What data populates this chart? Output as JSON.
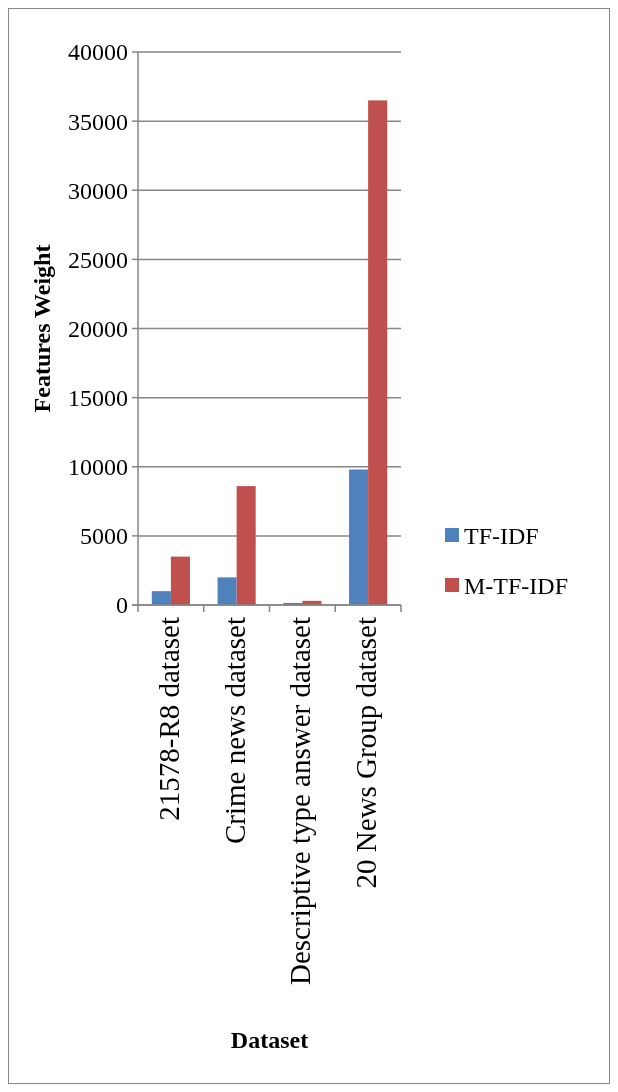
{
  "chart_data": {
    "type": "bar",
    "xlabel": "Dataset",
    "ylabel": "Features Weight",
    "categories": [
      "21578-R8 dataset",
      "Crime news dataset",
      "Descriptive type answer dataset",
      "20 News Group dataset"
    ],
    "series": [
      {
        "name": "TF-IDF",
        "color": "#4f81bd",
        "values": [
          1000,
          2000,
          150,
          9800
        ]
      },
      {
        "name": "M-TF-IDF",
        "color": "#c0504d",
        "values": [
          3500,
          8600,
          300,
          36500
        ]
      }
    ],
    "ylim": [
      0,
      40000
    ],
    "yticks": [
      0,
      5000,
      10000,
      15000,
      20000,
      25000,
      30000,
      35000,
      40000
    ],
    "grid": "y",
    "legend": "right"
  }
}
